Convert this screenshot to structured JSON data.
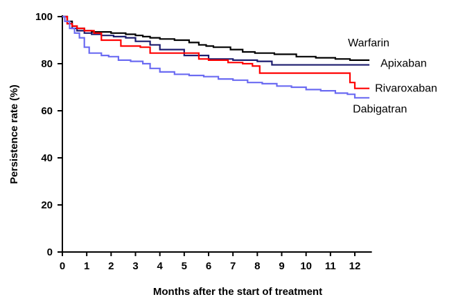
{
  "chart_data": {
    "type": "line",
    "xlabel": "Months after the start of treatment",
    "ylabel": "Persistence rate (%)",
    "xlim": [
      0,
      12.7
    ],
    "ylim": [
      0,
      100
    ],
    "x_ticks": [
      0,
      1,
      2,
      3,
      4,
      5,
      6,
      7,
      8,
      9,
      10,
      11,
      12
    ],
    "y_ticks": [
      0,
      20,
      40,
      60,
      80,
      100
    ],
    "grid": false,
    "series": [
      {
        "name": "Warfarin",
        "color": "#000000",
        "x": [
          0,
          0.2,
          0.4,
          0.6,
          0.9,
          1.2,
          2.0,
          2.6,
          3.0,
          3.3,
          3.6,
          4.0,
          4.6,
          5.2,
          5.6,
          5.9,
          6.2,
          6.9,
          7.4,
          7.9,
          8.7,
          9.6,
          10.4,
          11.2,
          11.8,
          12.6
        ],
        "y": [
          100,
          98,
          96,
          95,
          94,
          93.5,
          93,
          92.5,
          92,
          91.5,
          91,
          90.5,
          90,
          89,
          88,
          87.5,
          87,
          86,
          85,
          84.5,
          84,
          83,
          82.5,
          82,
          81.5,
          81.5
        ]
      },
      {
        "name": "Apixaban",
        "color": "#1c1c6e",
        "x": [
          0,
          0.2,
          0.4,
          0.6,
          0.9,
          1.2,
          1.6,
          2.1,
          2.6,
          3.0,
          3.6,
          4.0,
          5.0,
          6.0,
          7.0,
          8.0,
          8.6,
          9.6,
          10.6,
          11.6,
          12.6
        ],
        "y": [
          100,
          97,
          95,
          94,
          93,
          92.5,
          92,
          91.5,
          91,
          89.5,
          88,
          86,
          83.5,
          82,
          81.5,
          81,
          79.5,
          79.5,
          79.5,
          79.5,
          79.5
        ]
      },
      {
        "name": "Rivaroxaban",
        "color": "#ff0000",
        "x": [
          0,
          0.2,
          0.4,
          0.6,
          0.9,
          1.3,
          1.6,
          2.4,
          3.2,
          3.6,
          4.4,
          5.0,
          5.6,
          6.0,
          6.8,
          7.4,
          7.8,
          8.1,
          8.8,
          9.6,
          10.4,
          11.4,
          11.8,
          12.0,
          12.6
        ],
        "y": [
          100,
          97,
          96,
          95,
          94,
          93,
          90,
          87.5,
          87,
          84.5,
          84.5,
          84.5,
          82,
          81.5,
          80.5,
          80,
          79,
          76,
          76,
          76,
          76,
          76,
          72,
          69.5,
          69.5
        ]
      },
      {
        "name": "Dabigatran",
        "color": "#6b6bf2",
        "x": [
          0,
          0.1,
          0.3,
          0.5,
          0.7,
          0.9,
          1.1,
          1.6,
          1.9,
          2.3,
          2.8,
          3.3,
          3.6,
          4.0,
          4.6,
          5.2,
          5.8,
          6.4,
          7.0,
          7.6,
          8.2,
          8.8,
          9.4,
          10.0,
          10.6,
          11.2,
          11.7,
          12.0,
          12.6
        ],
        "y": [
          100,
          98,
          95,
          93,
          91,
          87,
          84.5,
          83.5,
          83,
          81.5,
          81,
          80,
          78,
          76.5,
          75.5,
          75,
          74.5,
          73.5,
          73,
          72,
          71.5,
          70.5,
          70,
          69,
          68.5,
          67.5,
          67,
          65.5,
          65.5
        ]
      }
    ]
  }
}
